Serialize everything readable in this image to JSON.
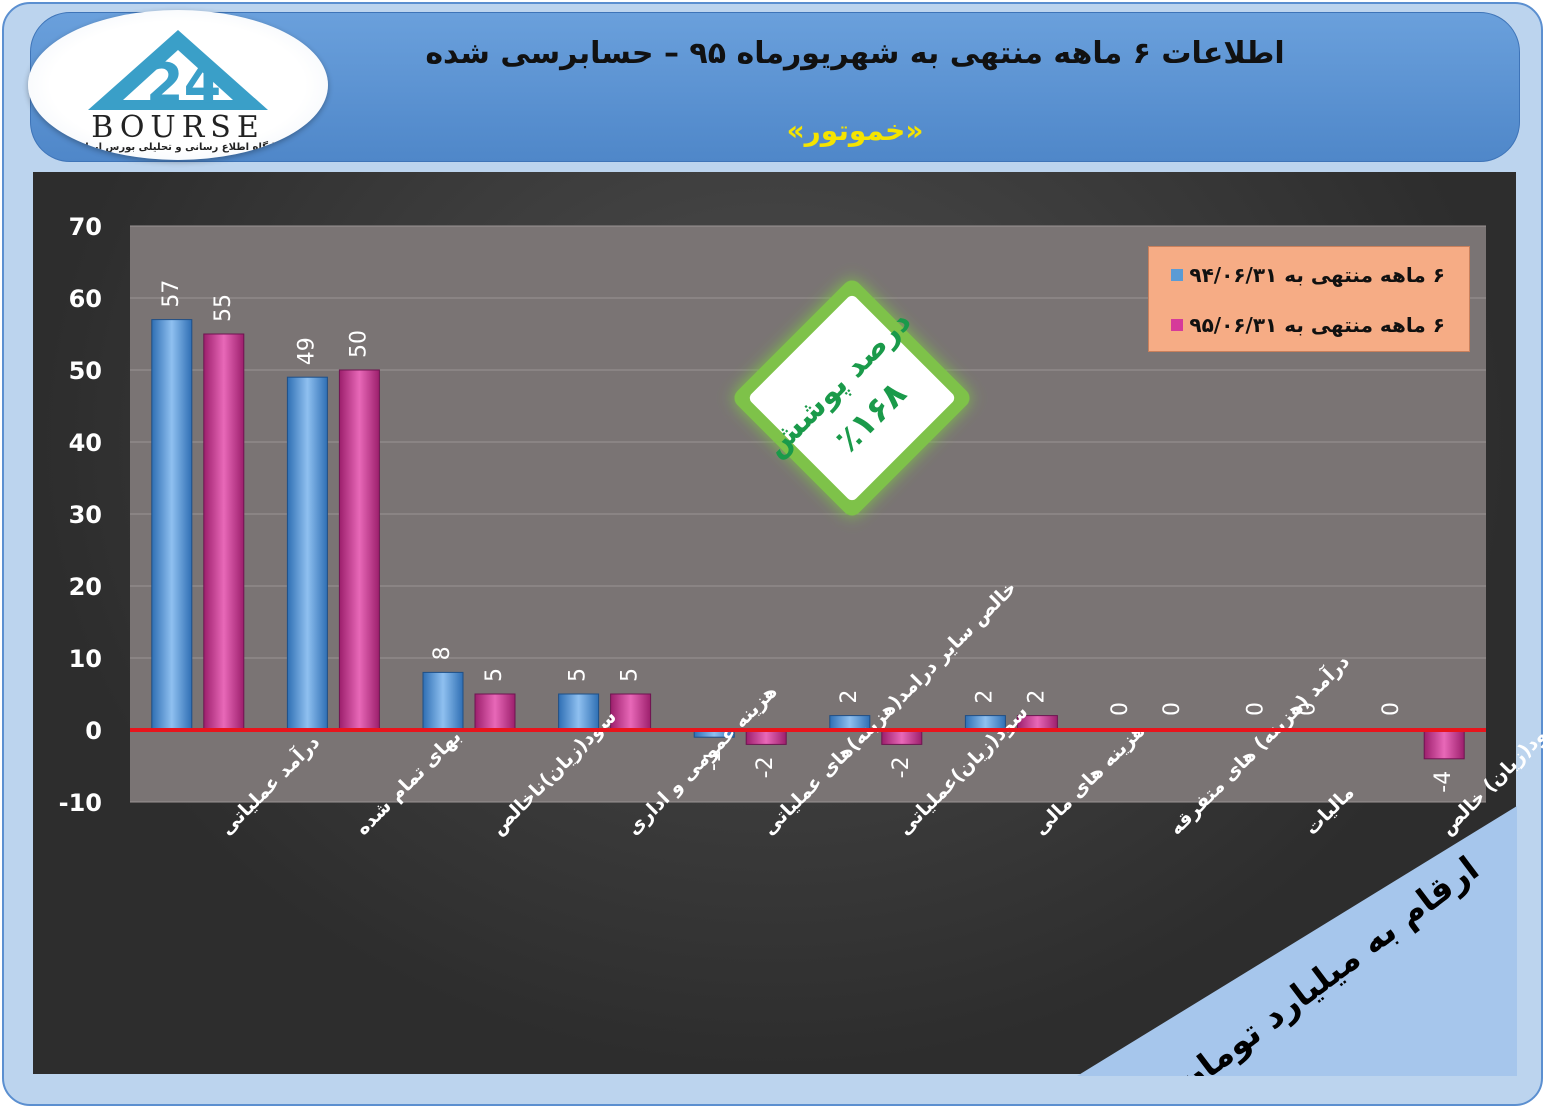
{
  "header": {
    "title": "اطلاعات ۶  ماهه منتهی به شهریورماه ۹۵ – حسابرسی شده",
    "subtitle": "«خموتور»"
  },
  "logo": {
    "text": "BOURSE",
    "subtitle": "پایگاه اطلاع رسانی و تحلیلی بورس ایران"
  },
  "badge": {
    "line1": "درصد پوشش",
    "line2": "٪۱۶۸"
  },
  "corner_note": "ارقام به میلیارد تومان",
  "colors": {
    "series1": "#5b9bd5",
    "series2": "#d63a9a",
    "zero_line": "#e8141c",
    "legend_bg": "#f6ac85"
  },
  "chart_data": {
    "type": "bar",
    "categories": [
      "درآمد عملیاتی",
      "بهای تمام شده",
      "سود(زیان)ناخالص",
      "هزینه عمومی و اداری",
      "خالص سایر درامد(هزینه)های عملیاتی",
      "سود(زیان)عملیاتی",
      "هزینه های مالی",
      "درآمد (هزینه) های متفرقه",
      "مالیات",
      "سود(زیان) خالص"
    ],
    "series": [
      {
        "name": "۶ ماهه منتهی به ۹۴/۰۶/۳۱",
        "values": [
          57,
          49,
          8,
          5,
          -1,
          2,
          2,
          0,
          0,
          0
        ]
      },
      {
        "name": "۶ ماهه منتهی به ۹۵/۰۶/۳۱",
        "values": [
          55,
          50,
          5,
          5,
          -2,
          -2,
          2,
          0,
          0,
          -4
        ]
      }
    ],
    "ylim": [
      -10,
      70
    ],
    "yticks": [
      70,
      60,
      50,
      40,
      30,
      20,
      10,
      0,
      -10
    ],
    "legend_position": "top-right",
    "grid": true
  }
}
